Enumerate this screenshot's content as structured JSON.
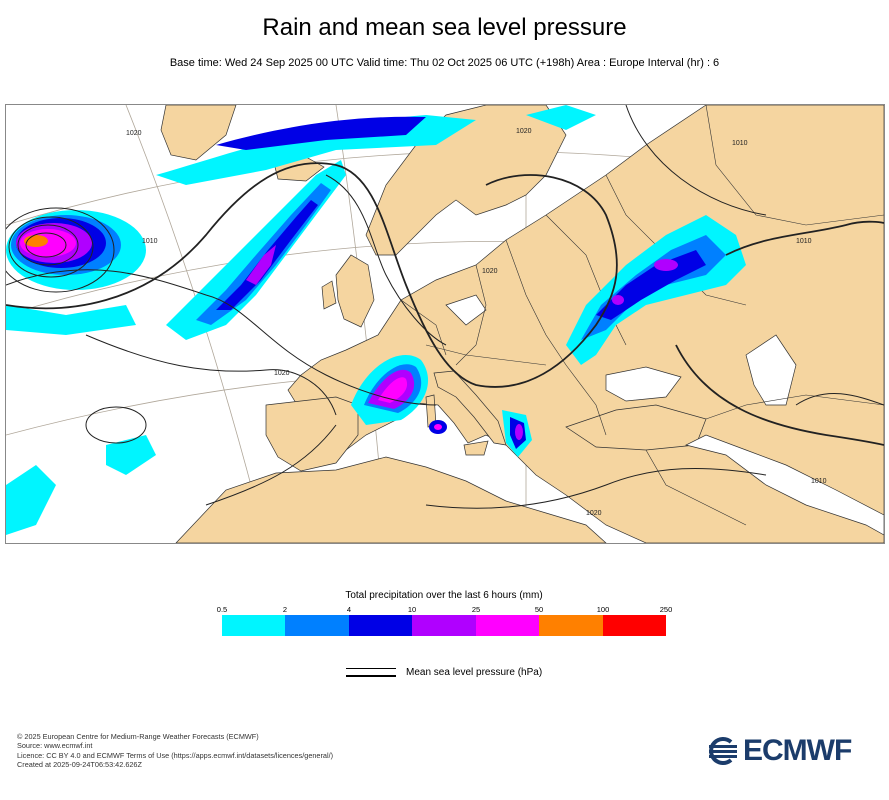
{
  "header": {
    "title": "Rain and mean sea level pressure",
    "subtitle": "Base time: Wed 24 Sep 2025 00 UTC Valid time: Thu 02 Oct 2025 06 UTC (+198h) Area : Europe Interval (hr) : 6"
  },
  "map": {
    "region": "Europe",
    "colors": {
      "land": "#f5d5a0",
      "sea": "#ffffff",
      "border": "#333333",
      "graticule": "#b0a79a",
      "isobar": "#222222"
    },
    "isobar_labels": [
      "1020",
      "1010",
      "1010",
      "1020",
      "1020",
      "1020",
      "1010",
      "1010",
      "1020"
    ]
  },
  "legend": {
    "precip_title": "Total precipitation over the last 6 hours (mm)",
    "ticks": [
      "0.5",
      "2",
      "4",
      "10",
      "25",
      "50",
      "100",
      "250"
    ],
    "colors": [
      "#00f5ff",
      "#0080ff",
      "#0000e6",
      "#b000ff",
      "#ff00ff",
      "#ff8000",
      "#ff0000"
    ],
    "isobar_label": "Mean sea level pressure (hPa)"
  },
  "footer": {
    "lines": [
      "© 2025 European Centre for Medium-Range Weather Forecasts (ECMWF)",
      "Source: www.ecmwf.int",
      "Licence: CC BY 4.0 and ECMWF Terms of Use (https://apps.ecmwf.int/datasets/licences/general/)",
      "Created at 2025-09-24T06:53:42.626Z"
    ],
    "logo_text": "ECMWF",
    "logo_color": "#1b3c6b"
  }
}
